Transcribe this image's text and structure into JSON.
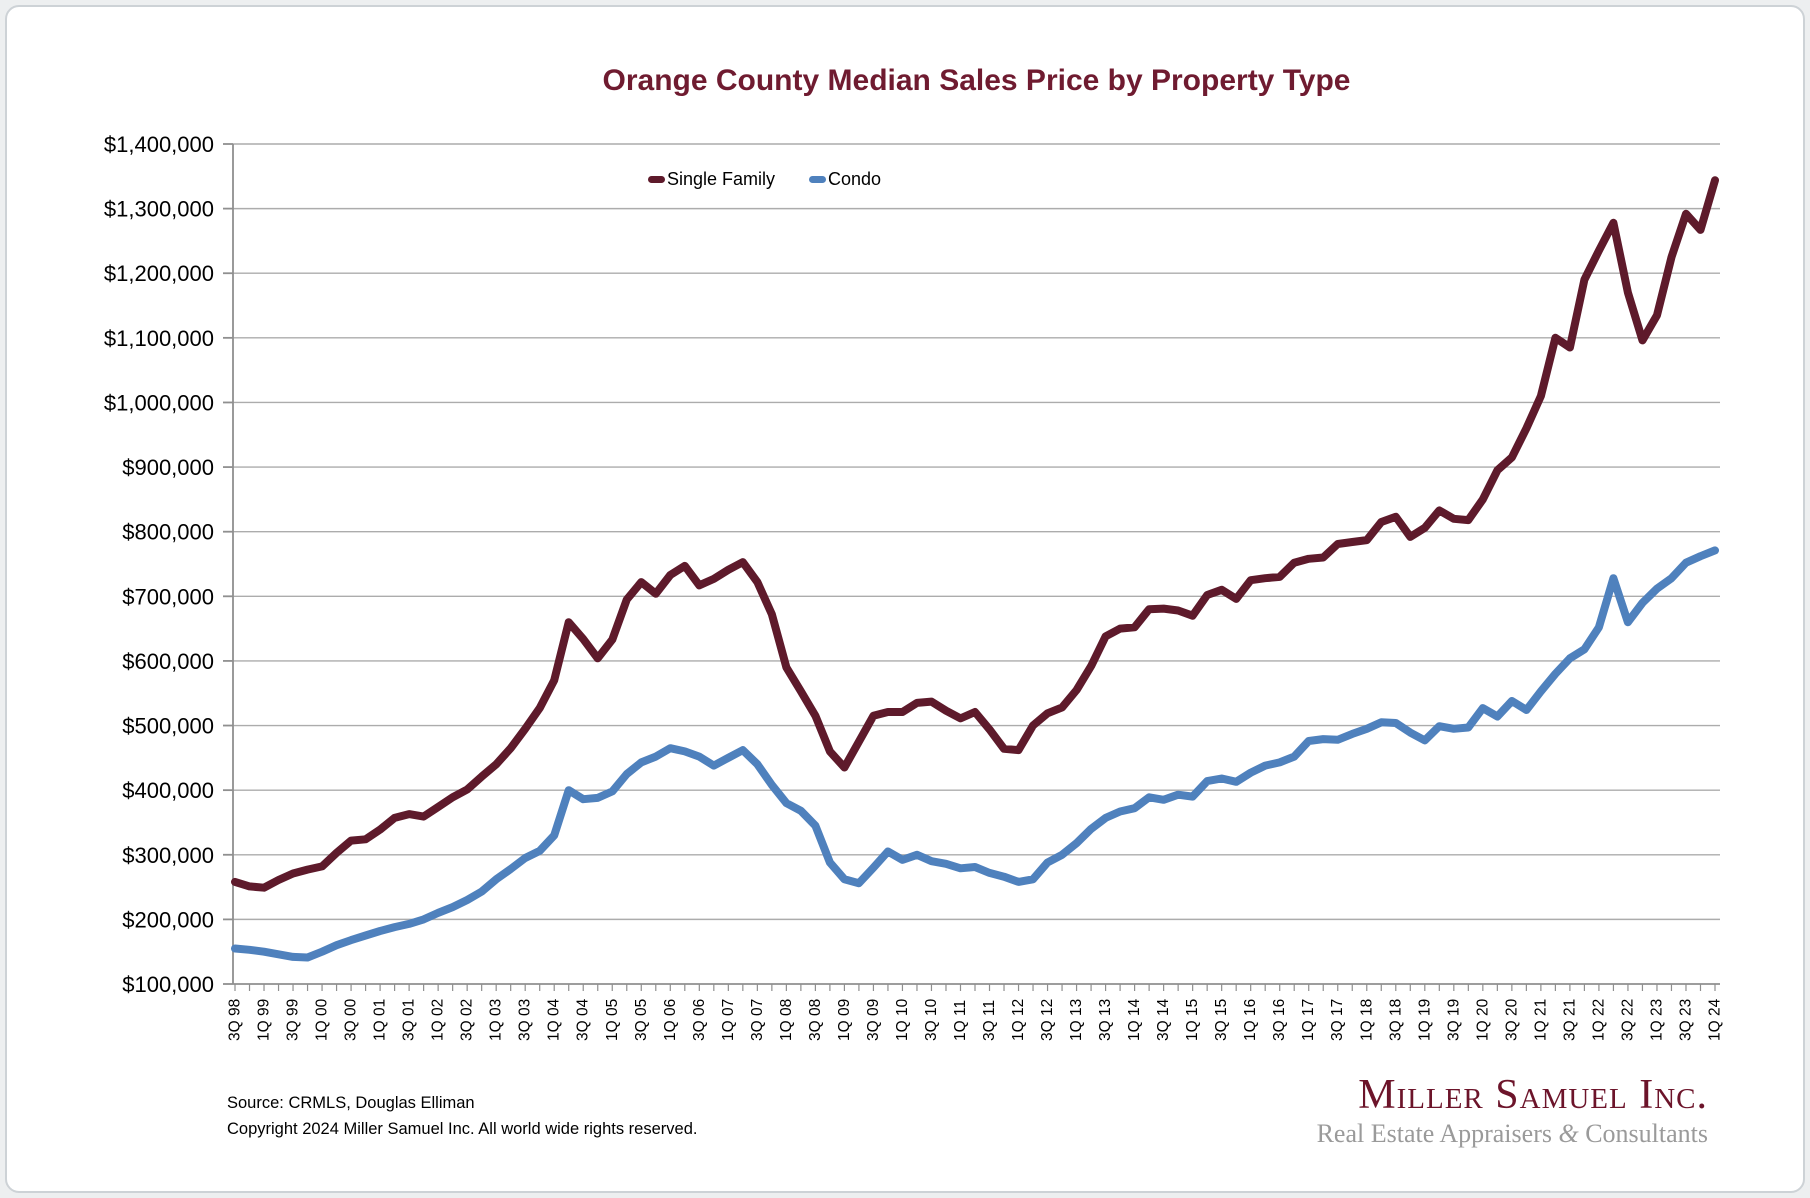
{
  "page": {
    "title": "Orange County Median Sales Price by Property Type"
  },
  "legend": {
    "items": [
      {
        "label": "Single Family",
        "color": "#5E1A2B"
      },
      {
        "label": "Condo",
        "color": "#4F81BD"
      }
    ]
  },
  "footer": {
    "source": "Source: CRMLS, Douglas Elliman",
    "copyright": "Copyright 2024 Miller Samuel Inc.  All world wide rights reserved."
  },
  "logo": {
    "name": "Miller Samuel Inc.",
    "tagline_pre": "Real Estate Appraisers ",
    "tagline_amp": "&",
    "tagline_post": " Consultants"
  },
  "chart_data": {
    "type": "line",
    "title": "Orange County Median Sales Price by Property Type",
    "x_start": "1998Q3",
    "x_end": "2024Q1",
    "frequency": "quarterly",
    "x_tick_labels": [
      "3Q 98",
      "1Q 99",
      "3Q 99",
      "1Q 00",
      "3Q 00",
      "1Q 01",
      "3Q 01",
      "1Q 02",
      "3Q 02",
      "1Q 03",
      "3Q 03",
      "1Q 04",
      "3Q 04",
      "1Q 05",
      "3Q 05",
      "1Q 06",
      "3Q 06",
      "1Q 07",
      "3Q 07",
      "1Q 08",
      "3Q 08",
      "1Q 09",
      "3Q 09",
      "1Q 10",
      "3Q 10",
      "1Q 11",
      "3Q 11",
      "1Q 12",
      "3Q 12",
      "1Q 13",
      "3Q 13",
      "1Q 14",
      "3Q 14",
      "1Q 15",
      "3Q 15",
      "1Q 16",
      "3Q 16",
      "1Q 17",
      "3Q 17",
      "1Q 18",
      "3Q 18",
      "1Q 19",
      "3Q 19",
      "1Q 20",
      "3Q 20",
      "1Q 21",
      "3Q 21",
      "1Q 22",
      "3Q 22",
      "1Q 23",
      "3Q 23",
      "1Q 24"
    ],
    "y_tick_labels": [
      "$100,000",
      "$200,000",
      "$300,000",
      "$400,000",
      "$500,000",
      "$600,000",
      "$700,000",
      "$800,000",
      "$900,000",
      "$1,000,000",
      "$1,100,000",
      "$1,200,000",
      "$1,300,000",
      "$1,400,000"
    ],
    "ylim": [
      100000,
      1400000
    ],
    "grid": "horizontal",
    "legend_position": "top-center",
    "series": [
      {
        "name": "Single Family",
        "color": "#5E1A2B",
        "values": [
          258000,
          251000,
          249000,
          261000,
          271000,
          277000,
          282000,
          303000,
          322000,
          324000,
          339000,
          357000,
          363000,
          359000,
          374000,
          389000,
          401000,
          421000,
          440000,
          465000,
          495000,
          527000,
          570000,
          660000,
          634000,
          604000,
          633000,
          695000,
          722000,
          704000,
          733000,
          747000,
          717000,
          727000,
          741000,
          753000,
          722000,
          672000,
          590000,
          553000,
          515000,
          460000,
          435000,
          475000,
          515000,
          521000,
          521000,
          535000,
          537000,
          523000,
          511000,
          521000,
          494000,
          464000,
          462000,
          500000,
          519000,
          528000,
          555000,
          592000,
          638000,
          650000,
          652000,
          680000,
          681000,
          678000,
          670000,
          702000,
          710000,
          696000,
          725000,
          728000,
          730000,
          752000,
          758000,
          760000,
          781000,
          784000,
          787000,
          815000,
          823000,
          792000,
          806000,
          833000,
          820000,
          818000,
          850000,
          895000,
          915000,
          960000,
          1010000,
          1100000,
          1085000,
          1190000,
          1235000,
          1278000,
          1170000,
          1096000,
          1135000,
          1225000,
          1292000,
          1267000,
          1344000
        ]
      },
      {
        "name": "Condo",
        "color": "#4F81BD",
        "values": [
          155000,
          153000,
          150000,
          146000,
          142000,
          141000,
          150000,
          160000,
          168000,
          175000,
          182000,
          188000,
          193000,
          200000,
          210000,
          219000,
          230000,
          243000,
          262000,
          278000,
          295000,
          306000,
          330000,
          400000,
          386000,
          388000,
          398000,
          425000,
          443000,
          452000,
          465000,
          460000,
          452000,
          438000,
          450000,
          462000,
          440000,
          408000,
          380000,
          368000,
          345000,
          288000,
          262000,
          256000,
          280000,
          305000,
          292000,
          300000,
          290000,
          286000,
          279000,
          281000,
          272000,
          266000,
          258000,
          262000,
          288000,
          300000,
          318000,
          340000,
          357000,
          367000,
          372000,
          389000,
          385000,
          393000,
          390000,
          414000,
          418000,
          413000,
          427000,
          438000,
          443000,
          452000,
          476000,
          479000,
          478000,
          487000,
          495000,
          505000,
          504000,
          489000,
          477000,
          499000,
          495000,
          497000,
          527000,
          514000,
          538000,
          524000,
          553000,
          580000,
          604000,
          618000,
          652000,
          728000,
          660000,
          690000,
          712000,
          728000,
          752000,
          762000,
          771000
        ]
      }
    ]
  }
}
